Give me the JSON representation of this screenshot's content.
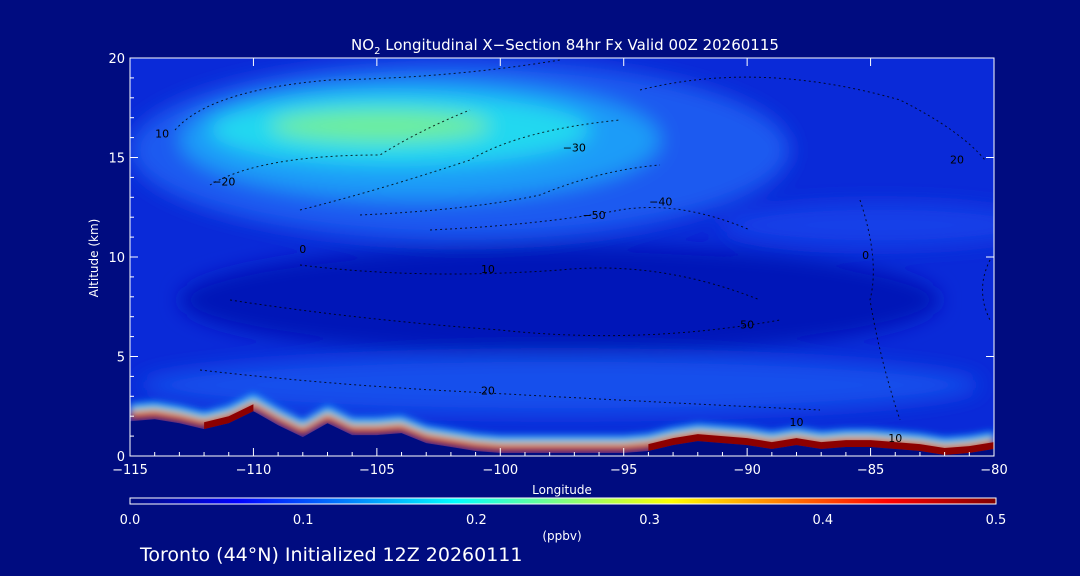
{
  "chart_data": {
    "type": "heatmap",
    "title_prefix": "NO",
    "title_sub": "2",
    "title_rest": " Longitudinal X−Section 84hr  Fx Valid 00Z 20260115",
    "xlabel": "Longitude",
    "ylabel": "Altitude (km)",
    "xlim": [
      -115,
      -80
    ],
    "ylim": [
      0,
      20
    ],
    "x_ticks": [
      "−115",
      "−110",
      "−105",
      "−100",
      "−95",
      "−90",
      "−85",
      "−80"
    ],
    "x_tick_values": [
      -115,
      -110,
      -105,
      -100,
      -95,
      -90,
      -85,
      -80
    ],
    "y_ticks": [
      "0",
      "5",
      "10",
      "15",
      "20"
    ],
    "y_tick_values": [
      0,
      5,
      10,
      15,
      20
    ],
    "colorbar": {
      "label": "(ppbv)",
      "range": [
        0.0,
        0.5
      ],
      "tick_values": [
        0.0,
        0.1,
        0.2,
        0.3,
        0.4,
        0.5
      ],
      "ticks": [
        "0.0",
        "0.1",
        "0.2",
        "0.3",
        "0.4",
        "0.5"
      ],
      "colors": [
        "#000c80",
        "#0000ff",
        "#0080ff",
        "#00ffff",
        "#80ff80",
        "#ffff00",
        "#ff8000",
        "#ff0000",
        "#800000"
      ]
    },
    "contour_labels": [
      {
        "text": "10",
        "lon": -113.7,
        "alt": 16.0
      },
      {
        "text": "−20",
        "lon": -111.2,
        "alt": 13.6
      },
      {
        "text": "−30",
        "lon": -97.0,
        "alt": 15.3
      },
      {
        "text": "−40",
        "lon": -93.5,
        "alt": 12.6
      },
      {
        "text": "−50",
        "lon": -96.2,
        "alt": 11.9
      },
      {
        "text": "0",
        "lon": -108.0,
        "alt": 10.2
      },
      {
        "text": "10",
        "lon": -100.5,
        "alt": 9.2
      },
      {
        "text": "50",
        "lon": -90.0,
        "alt": 6.4
      },
      {
        "text": "20",
        "lon": -100.5,
        "alt": 3.1
      },
      {
        "text": "10",
        "lon": -88.0,
        "alt": 1.5
      },
      {
        "text": "10",
        "lon": -84.0,
        "alt": 0.7
      },
      {
        "text": "20",
        "lon": -81.5,
        "alt": 14.7
      },
      {
        "text": "0",
        "lon": -85.2,
        "alt": 9.9
      }
    ],
    "terrain": {
      "lon": [
        -115,
        -114,
        -113,
        -112,
        -111,
        -110,
        -109,
        -108,
        -107,
        -106,
        -105,
        -104,
        -103,
        -102,
        -101,
        -100,
        -99,
        -98,
        -97,
        -96,
        -95,
        -94,
        -93,
        -92,
        -91,
        -90,
        -89,
        -88,
        -87,
        -86,
        -85,
        -84,
        -83,
        -82,
        -81,
        -80
      ],
      "alt": [
        2.1,
        2.2,
        2.0,
        1.7,
        2.0,
        2.6,
        1.9,
        1.3,
        2.0,
        1.4,
        1.4,
        1.5,
        1.0,
        0.8,
        0.6,
        0.5,
        0.5,
        0.5,
        0.5,
        0.5,
        0.5,
        0.6,
        0.9,
        1.1,
        1.0,
        0.9,
        0.7,
        0.9,
        0.7,
        0.8,
        0.8,
        0.7,
        0.6,
        0.4,
        0.5,
        0.7
      ]
    }
  },
  "footer": {
    "text": "Toronto (44°N) Initialized 12Z 20260111"
  }
}
